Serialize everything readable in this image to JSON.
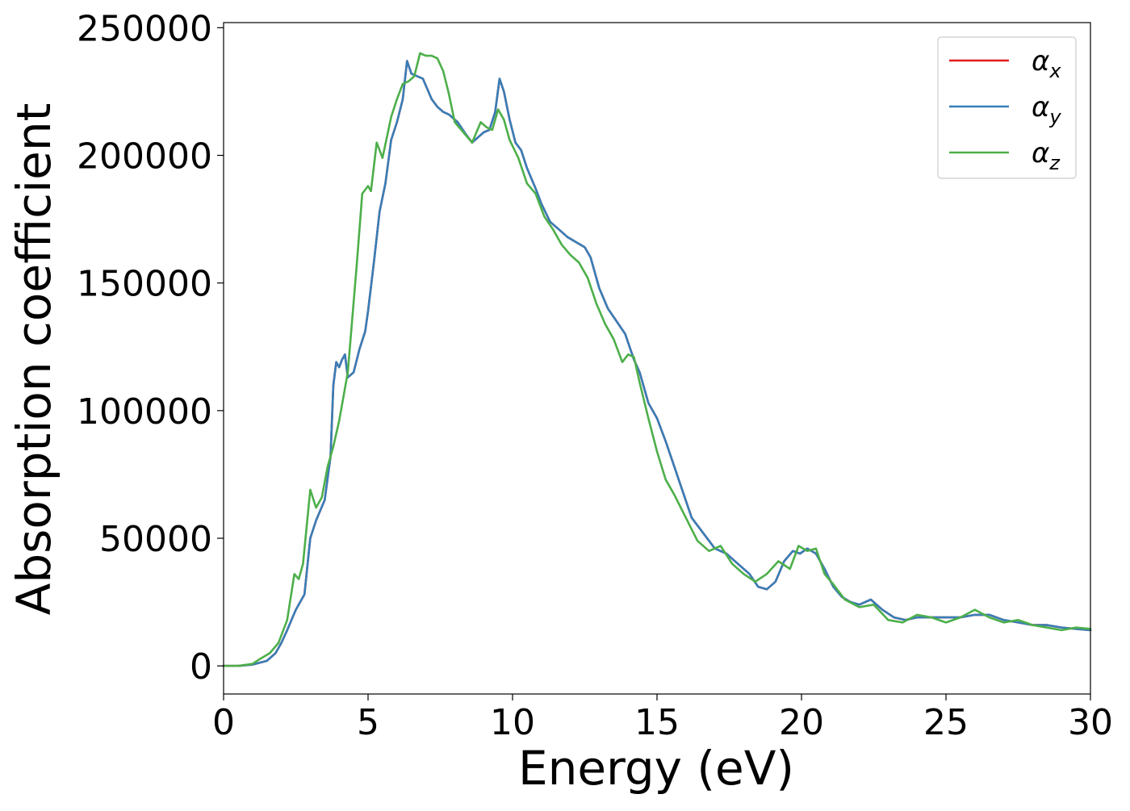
{
  "chart_data": {
    "type": "line",
    "title": "",
    "xlabel": "Energy (eV)",
    "ylabel": "Absorption coefficient",
    "xlim": [
      0,
      30
    ],
    "ylim": [
      -11000,
      252000
    ],
    "xticks": [
      0,
      5,
      10,
      15,
      20,
      25,
      30
    ],
    "xtick_labels": [
      "0",
      "5",
      "10",
      "15",
      "20",
      "25",
      "30"
    ],
    "yticks": [
      0,
      50000,
      100000,
      150000,
      200000,
      250000
    ],
    "ytick_labels": [
      "0",
      "50000",
      "100000",
      "150000",
      "200000",
      "250000"
    ],
    "grid": false,
    "legend_position": "top-right",
    "series": [
      {
        "name": "α_x",
        "symbol": "α",
        "subscript": "x",
        "color": "#e41a1c",
        "x": [
          0,
          0.5,
          1.0,
          1.5,
          1.8,
          2.0,
          2.2,
          2.5,
          2.8,
          3.0,
          3.2,
          3.5,
          3.7,
          3.8,
          3.9,
          4.0,
          4.1,
          4.2,
          4.3,
          4.5,
          4.7,
          4.9,
          5.0,
          5.2,
          5.4,
          5.6,
          5.8,
          6.0,
          6.2,
          6.35,
          6.5,
          6.7,
          6.9,
          7.2,
          7.4,
          7.6,
          7.8,
          8.1,
          8.4,
          8.6,
          8.8,
          9.0,
          9.2,
          9.4,
          9.55,
          9.7,
          9.9,
          10.1,
          10.3,
          10.5,
          10.8,
          11.0,
          11.3,
          11.6,
          11.9,
          12.2,
          12.5,
          12.7,
          13.0,
          13.3,
          13.6,
          13.9,
          14.2,
          14.4,
          14.7,
          15.0,
          15.3,
          15.6,
          15.9,
          16.2,
          16.6,
          17.0,
          17.4,
          17.8,
          18.2,
          18.5,
          18.8,
          19.1,
          19.4,
          19.7,
          19.95,
          20.2,
          20.5,
          20.8,
          21.1,
          21.4,
          21.7,
          22.0,
          22.4,
          22.8,
          23.2,
          23.6,
          24.0,
          24.5,
          25.0,
          25.5,
          26.0,
          26.5,
          27.0,
          27.5,
          28.0,
          28.5,
          29.0,
          29.5,
          30.0
        ],
        "y": [
          0,
          0,
          500,
          2000,
          5000,
          9000,
          14000,
          22000,
          28000,
          50000,
          57000,
          65000,
          82000,
          110000,
          119000,
          117000,
          120000,
          122000,
          113000,
          115000,
          124000,
          131000,
          139000,
          158000,
          178000,
          189000,
          206000,
          213000,
          222000,
          237000,
          232000,
          231000,
          230000,
          222000,
          219000,
          217000,
          216000,
          213000,
          208000,
          205000,
          207000,
          209000,
          210000,
          217000,
          230000,
          225000,
          214000,
          205000,
          202000,
          195000,
          187000,
          181000,
          174000,
          171000,
          168000,
          166000,
          164000,
          160000,
          148000,
          140000,
          135000,
          130000,
          120000,
          115000,
          103000,
          97000,
          88000,
          78000,
          68000,
          58000,
          52000,
          46000,
          44000,
          40000,
          36000,
          31000,
          30000,
          33000,
          41000,
          45000,
          44000,
          46000,
          44000,
          38000,
          31000,
          27000,
          25000,
          24000,
          26000,
          22000,
          19000,
          18000,
          19000,
          19000,
          19000,
          19000,
          20000,
          20000,
          18000,
          17000,
          16000,
          16000,
          15000,
          14500,
          14000
        ]
      },
      {
        "name": "α_y",
        "symbol": "α",
        "subscript": "y",
        "color": "#377eb8",
        "x": [
          0,
          0.5,
          1.0,
          1.5,
          1.8,
          2.0,
          2.2,
          2.5,
          2.8,
          3.0,
          3.2,
          3.5,
          3.7,
          3.8,
          3.9,
          4.0,
          4.1,
          4.2,
          4.3,
          4.5,
          4.7,
          4.9,
          5.0,
          5.2,
          5.4,
          5.6,
          5.8,
          6.0,
          6.2,
          6.35,
          6.5,
          6.7,
          6.9,
          7.2,
          7.4,
          7.6,
          7.8,
          8.1,
          8.4,
          8.6,
          8.8,
          9.0,
          9.2,
          9.4,
          9.55,
          9.7,
          9.9,
          10.1,
          10.3,
          10.5,
          10.8,
          11.0,
          11.3,
          11.6,
          11.9,
          12.2,
          12.5,
          12.7,
          13.0,
          13.3,
          13.6,
          13.9,
          14.2,
          14.4,
          14.7,
          15.0,
          15.3,
          15.6,
          15.9,
          16.2,
          16.6,
          17.0,
          17.4,
          17.8,
          18.2,
          18.5,
          18.8,
          19.1,
          19.4,
          19.7,
          19.95,
          20.2,
          20.5,
          20.8,
          21.1,
          21.4,
          21.7,
          22.0,
          22.4,
          22.8,
          23.2,
          23.6,
          24.0,
          24.5,
          25.0,
          25.5,
          26.0,
          26.5,
          27.0,
          27.5,
          28.0,
          28.5,
          29.0,
          29.5,
          30.0
        ],
        "y": [
          0,
          0,
          500,
          2000,
          5000,
          9000,
          14000,
          22000,
          28000,
          50000,
          57000,
          65000,
          82000,
          110000,
          119000,
          117000,
          120000,
          122000,
          113000,
          115000,
          124000,
          131000,
          139000,
          158000,
          178000,
          189000,
          206000,
          213000,
          222000,
          237000,
          232000,
          231000,
          230000,
          222000,
          219000,
          217000,
          216000,
          213000,
          208000,
          205000,
          207000,
          209000,
          210000,
          217000,
          230000,
          225000,
          214000,
          205000,
          202000,
          195000,
          187000,
          181000,
          174000,
          171000,
          168000,
          166000,
          164000,
          160000,
          148000,
          140000,
          135000,
          130000,
          120000,
          115000,
          103000,
          97000,
          88000,
          78000,
          68000,
          58000,
          52000,
          46000,
          44000,
          40000,
          36000,
          31000,
          30000,
          33000,
          41000,
          45000,
          44000,
          46000,
          44000,
          38000,
          31000,
          27000,
          25000,
          24000,
          26000,
          22000,
          19000,
          18000,
          19000,
          19000,
          19000,
          19000,
          20000,
          20000,
          18000,
          17000,
          16000,
          16000,
          15000,
          14500,
          14000
        ]
      },
      {
        "name": "α_z",
        "symbol": "α",
        "subscript": "z",
        "color": "#4daf4a",
        "x": [
          0,
          0.5,
          1.0,
          1.3,
          1.6,
          1.9,
          2.2,
          2.45,
          2.6,
          2.75,
          3.0,
          3.2,
          3.4,
          3.6,
          3.8,
          4.0,
          4.3,
          4.6,
          4.8,
          5.0,
          5.1,
          5.3,
          5.5,
          5.8,
          6.0,
          6.2,
          6.4,
          6.6,
          6.8,
          7.0,
          7.2,
          7.4,
          7.6,
          7.8,
          8.0,
          8.3,
          8.6,
          8.9,
          9.1,
          9.3,
          9.5,
          9.7,
          9.9,
          10.2,
          10.5,
          10.8,
          11.1,
          11.4,
          11.7,
          12.0,
          12.3,
          12.6,
          12.9,
          13.2,
          13.5,
          13.8,
          14.0,
          14.2,
          14.4,
          14.7,
          15.0,
          15.3,
          15.6,
          16.0,
          16.4,
          16.8,
          17.2,
          17.6,
          18.0,
          18.4,
          18.8,
          19.2,
          19.6,
          19.9,
          20.2,
          20.5,
          20.8,
          21.1,
          21.5,
          22.0,
          22.5,
          23.0,
          23.5,
          24.0,
          24.5,
          25.0,
          25.5,
          26.0,
          26.5,
          27.0,
          27.5,
          28.0,
          28.5,
          29.0,
          29.5,
          30.0
        ],
        "y": [
          0,
          0,
          800,
          3000,
          5000,
          9000,
          18000,
          36000,
          34000,
          40000,
          69000,
          62000,
          66000,
          78000,
          86000,
          96000,
          115000,
          156000,
          185000,
          188000,
          186000,
          205000,
          199000,
          215000,
          222000,
          228000,
          229000,
          231000,
          240000,
          239000,
          239000,
          238000,
          233000,
          224000,
          213000,
          209000,
          205000,
          213000,
          211000,
          210000,
          218000,
          214000,
          206000,
          199000,
          189000,
          185000,
          176000,
          171000,
          165000,
          161000,
          158000,
          152000,
          142000,
          134000,
          128000,
          119000,
          122000,
          121000,
          111000,
          97000,
          84000,
          73000,
          67000,
          58000,
          49000,
          45000,
          47000,
          40000,
          36000,
          33000,
          36000,
          41000,
          38000,
          47000,
          45000,
          46000,
          36000,
          32000,
          26000,
          23000,
          24000,
          18000,
          17000,
          20000,
          19000,
          17000,
          19000,
          22000,
          19000,
          17000,
          18000,
          16000,
          15000,
          14000,
          15000,
          14500
        ]
      }
    ]
  }
}
